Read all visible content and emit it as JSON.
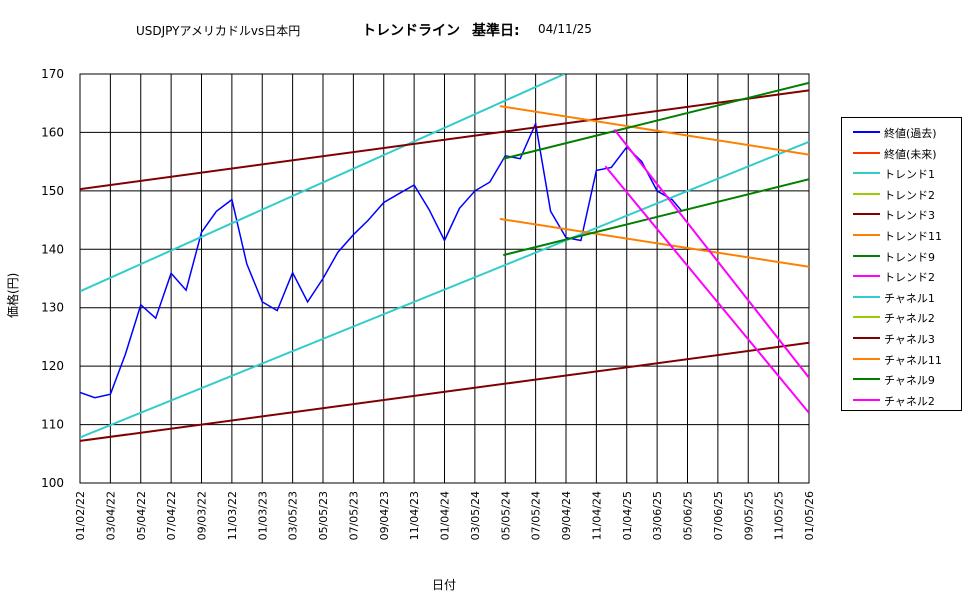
{
  "title": {
    "main": "USDJPYアメリカドルvs日本円",
    "trend": "トレンドライン",
    "label": "基準日:",
    "date": "04/11/25"
  },
  "chart_data": {
    "type": "line",
    "xlabel": "日付",
    "ylabel": "価格(円)",
    "ylim": [
      100,
      170
    ],
    "yticks": [
      "100",
      "110",
      "120",
      "130",
      "140",
      "150",
      "160",
      "170"
    ],
    "xticks": [
      "01/02/22",
      "03/04/22",
      "05/04/22",
      "07/04/22",
      "09/03/22",
      "11/03/22",
      "01/03/23",
      "03/05/23",
      "05/05/23",
      "07/05/23",
      "09/04/23",
      "11/04/23",
      "01/04/24",
      "03/05/24",
      "05/05/24",
      "07/05/24",
      "09/04/24",
      "11/04/24",
      "01/04/25",
      "03/06/25",
      "05/06/25",
      "07/06/25",
      "09/05/25",
      "11/05/25",
      "01/05/26"
    ],
    "xrange": [
      "01/02/22",
      "01/05/26"
    ],
    "grid": true,
    "legend_position": "right",
    "series": [
      {
        "name": "終値(過去)",
        "color": "#0000ff",
        "kind": "price",
        "x": [
          "01/02/22",
          "02/01/22",
          "03/04/22",
          "04/03/22",
          "05/04/22",
          "06/03/22",
          "07/04/22",
          "08/03/22",
          "09/03/22",
          "10/03/22",
          "11/03/22",
          "12/03/22",
          "01/03/23",
          "02/02/23",
          "03/05/23",
          "04/04/23",
          "05/05/23",
          "06/04/23",
          "07/05/23",
          "08/04/23",
          "09/04/23",
          "10/04/23",
          "11/04/23",
          "12/04/23",
          "01/04/24",
          "02/03/24",
          "03/05/24",
          "04/04/24",
          "05/05/24",
          "06/04/24",
          "07/05/24",
          "08/04/24",
          "09/04/24",
          "10/04/24",
          "11/04/24",
          "12/04/24",
          "01/04/25",
          "02/03/25",
          "03/06/25",
          "04/05/25",
          "04/25/25"
        ],
        "y": [
          115.5,
          114.6,
          115.2,
          122.0,
          130.5,
          128.2,
          135.9,
          133.0,
          142.9,
          146.5,
          148.5,
          137.5,
          131.0,
          129.5,
          136.0,
          131.0,
          135.0,
          139.5,
          142.5,
          145.0,
          148.0,
          149.5,
          151.0,
          146.8,
          141.5,
          147.0,
          150.0,
          151.5,
          156.0,
          155.5,
          161.5,
          146.5,
          142.0,
          141.5,
          153.5,
          154.0,
          157.5,
          155.0,
          150.0,
          148.5,
          146.5
        ]
      },
      {
        "name": "終値(未来)",
        "color": "#ff3300",
        "kind": "none"
      },
      {
        "name": "トレンド1",
        "color": "#33cccc",
        "kind": "line",
        "x": [
          "01/02/22",
          "01/05/26"
        ],
        "y": [
          107.8,
          158.4
        ]
      },
      {
        "name": "トレンド2",
        "color": "#99cc00",
        "kind": "none"
      },
      {
        "name": "トレンド3",
        "color": "#800000",
        "kind": "line",
        "x": [
          "01/02/22",
          "01/05/26"
        ],
        "y": [
          107.2,
          124.0
        ]
      },
      {
        "name": "トレンド11",
        "color": "#ff8000",
        "kind": "line",
        "x": [
          "04/24/24",
          "01/05/26"
        ],
        "y": [
          145.2,
          137.0
        ]
      },
      {
        "name": "トレンド9",
        "color": "#008000",
        "kind": "line",
        "x": [
          "05/01/24",
          "01/05/26"
        ],
        "y": [
          139.0,
          152.0
        ]
      },
      {
        "name": "トレンド2",
        "color": "#ff00ff",
        "kind": "line",
        "x": [
          "11/22/24",
          "01/05/26"
        ],
        "y": [
          154.2,
          112.0
        ]
      },
      {
        "name": "チャネル1",
        "color": "#33cccc",
        "kind": "line",
        "x": [
          "01/02/22",
          "09/01/24"
        ],
        "y": [
          132.8,
          170.0
        ]
      },
      {
        "name": "チャネル2",
        "color": "#99cc00",
        "kind": "none"
      },
      {
        "name": "チャネル3",
        "color": "#800000",
        "kind": "line",
        "x": [
          "01/02/22",
          "01/05/26"
        ],
        "y": [
          150.3,
          167.2
        ]
      },
      {
        "name": "チャネル11",
        "color": "#ff8000",
        "kind": "line",
        "x": [
          "04/24/24",
          "01/05/26"
        ],
        "y": [
          164.5,
          156.2
        ]
      },
      {
        "name": "チャネル9",
        "color": "#008000",
        "kind": "line",
        "x": [
          "05/01/24",
          "01/05/26"
        ],
        "y": [
          155.5,
          168.5
        ]
      },
      {
        "name": "チャネル2",
        "color": "#ff00ff",
        "kind": "line",
        "x": [
          "12/10/24",
          "01/05/26"
        ],
        "y": [
          160.5,
          118.0
        ]
      }
    ]
  }
}
